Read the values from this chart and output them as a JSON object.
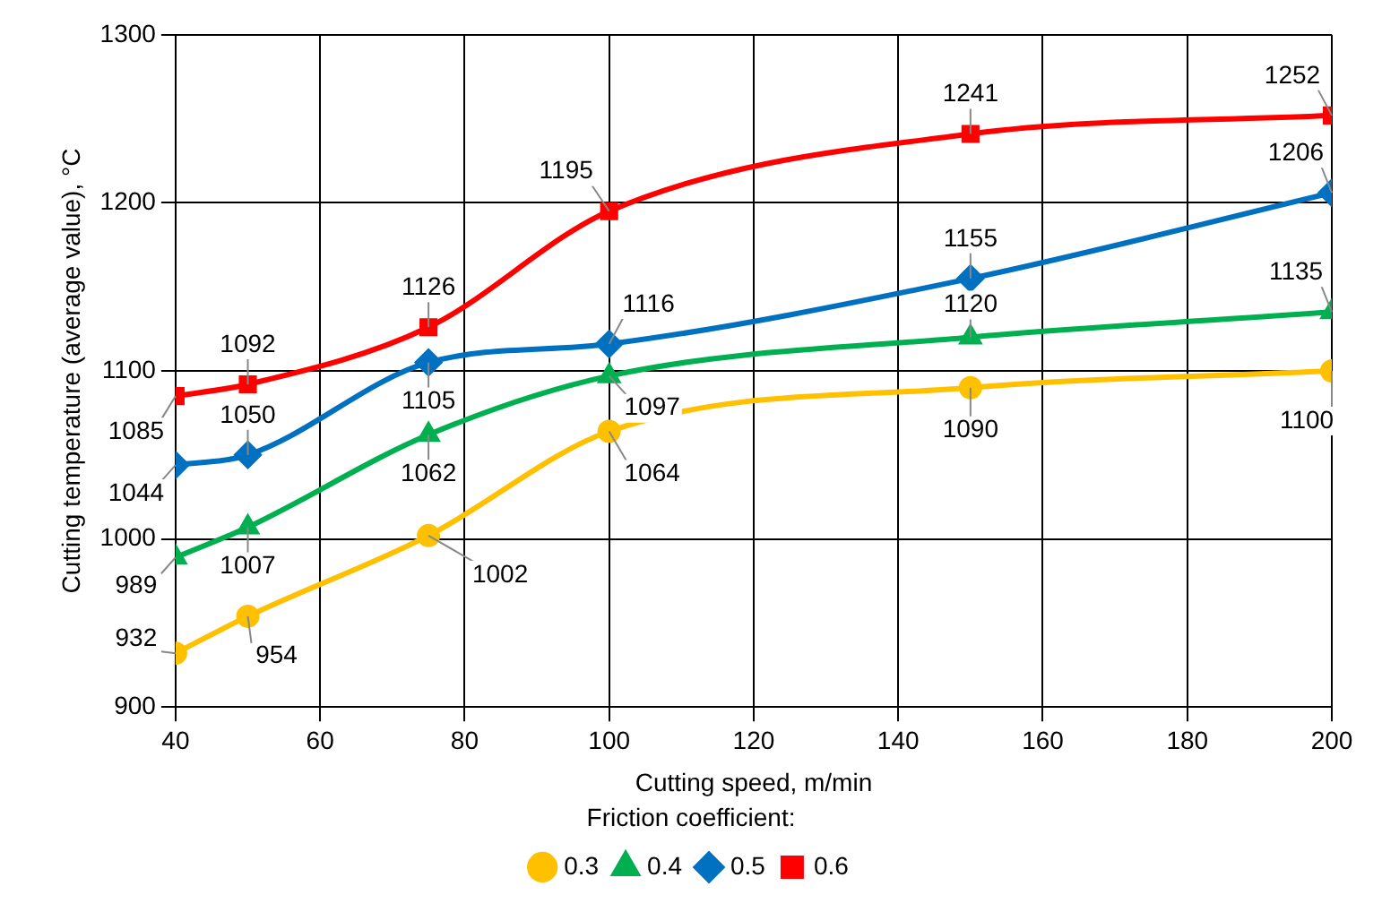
{
  "chart_data": {
    "type": "line",
    "xlabel": "Cutting speed, m/min",
    "ylabel": "Cutting temperature (average value), °C",
    "legend_title": "Friction coefficient:",
    "x": [
      40,
      50,
      75,
      100,
      150,
      200
    ],
    "series": [
      {
        "name": "0.3",
        "color": "#ffc000",
        "marker": "circle",
        "values": [
          932,
          954,
          1002,
          1064,
          1090,
          1100
        ]
      },
      {
        "name": "0.4",
        "color": "#00b050",
        "marker": "triangle",
        "values": [
          989,
          1007,
          1062,
          1097,
          1120,
          1135
        ]
      },
      {
        "name": "0.5",
        "color": "#0070c0",
        "marker": "diamond",
        "values": [
          1044,
          1050,
          1105,
          1116,
          1155,
          1206
        ]
      },
      {
        "name": "0.6",
        "color": "#ff0000",
        "marker": "square",
        "values": [
          1085,
          1092,
          1126,
          1195,
          1241,
          1252
        ]
      }
    ],
    "xlim": [
      40,
      200
    ],
    "xticks": [
      40,
      60,
      80,
      100,
      120,
      140,
      160,
      180,
      200
    ],
    "ylim": [
      900,
      1300
    ],
    "yticks": [
      900,
      1000,
      1100,
      1200,
      1300
    ],
    "grid": true,
    "legend": "bottom",
    "data_labels": true,
    "line_style": "solid"
  }
}
